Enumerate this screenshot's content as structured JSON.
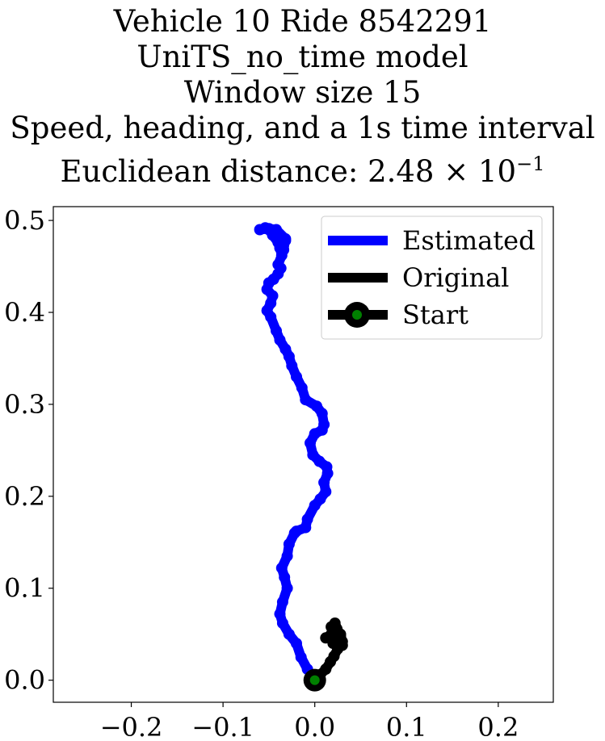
{
  "title": {
    "line1": "Vehicle 10 Ride 8542291",
    "line2": "UniTS_no_time model",
    "line3": "Window size 15",
    "line4": "Speed, heading, and a 1s time interval",
    "line5_prefix": "Euclidean distance: 2.48",
    "line5_times": "×",
    "line5_base": "10",
    "line5_exp": "−1"
  },
  "chart_data": {
    "type": "line",
    "xlim": [
      -0.285,
      0.26
    ],
    "ylim": [
      -0.024,
      0.515
    ],
    "xticks": [
      -0.2,
      -0.1,
      0.0,
      0.1,
      0.2
    ],
    "xtick_labels": [
      "−0.2",
      "−0.1",
      "0.0",
      "0.1",
      "0.2"
    ],
    "yticks": [
      0.0,
      0.1,
      0.2,
      0.3,
      0.4,
      0.5
    ],
    "ytick_labels": [
      "0.0",
      "0.1",
      "0.2",
      "0.3",
      "0.4",
      "0.5"
    ],
    "grid": false,
    "legend_position": "top-right",
    "colors": {
      "estimated": "#0000ff",
      "original": "#000000",
      "start_marker_fill": "#008000",
      "start_marker_edge": "#000000"
    },
    "series": [
      {
        "name": "Estimated",
        "color": "#0000ff",
        "x": [
          0.0,
          -0.008,
          -0.015,
          -0.02,
          -0.028,
          -0.035,
          -0.038,
          -0.035,
          -0.03,
          -0.033,
          -0.036,
          -0.03,
          -0.028,
          -0.022,
          -0.02,
          -0.01,
          -0.008,
          0.0,
          0.006,
          0.012,
          0.01,
          0.014,
          0.013,
          0.005,
          -0.002,
          -0.005,
          0.0,
          0.008,
          0.01,
          0.008,
          0.002,
          -0.01,
          -0.014,
          -0.02,
          -0.025,
          -0.028,
          -0.032,
          -0.038,
          -0.042,
          -0.048,
          -0.052,
          -0.048,
          -0.046,
          -0.052,
          -0.05,
          -0.045,
          -0.04,
          -0.037,
          -0.04,
          -0.036,
          -0.038,
          -0.04,
          -0.046,
          -0.05,
          -0.054,
          -0.048,
          -0.04,
          -0.032,
          -0.036,
          -0.034,
          -0.032,
          -0.042,
          -0.05,
          -0.06
        ],
        "y": [
          0.0,
          0.012,
          0.025,
          0.04,
          0.05,
          0.062,
          0.072,
          0.085,
          0.1,
          0.112,
          0.122,
          0.135,
          0.148,
          0.16,
          0.162,
          0.166,
          0.175,
          0.19,
          0.197,
          0.205,
          0.215,
          0.225,
          0.232,
          0.238,
          0.245,
          0.258,
          0.268,
          0.272,
          0.278,
          0.29,
          0.298,
          0.305,
          0.318,
          0.33,
          0.342,
          0.352,
          0.36,
          0.37,
          0.38,
          0.395,
          0.402,
          0.41,
          0.418,
          0.425,
          0.432,
          0.436,
          0.442,
          0.448,
          0.452,
          0.462,
          0.47,
          0.476,
          0.484,
          0.49,
          0.492,
          0.49,
          0.486,
          0.478,
          0.472,
          0.468,
          0.48,
          0.49,
          0.491,
          0.49
        ]
      },
      {
        "name": "Original",
        "color": "#000000",
        "x": [
          0.0,
          0.006,
          0.012,
          0.017,
          0.021,
          0.025,
          0.022,
          0.018,
          0.012,
          0.018,
          0.024,
          0.03,
          0.026,
          0.02,
          0.024,
          0.028,
          0.03,
          0.025,
          0.02,
          0.024,
          0.022,
          0.018,
          0.022,
          0.028
        ],
        "y": [
          0.0,
          0.006,
          0.012,
          0.02,
          0.026,
          0.034,
          0.04,
          0.045,
          0.046,
          0.05,
          0.044,
          0.038,
          0.046,
          0.052,
          0.056,
          0.05,
          0.042,
          0.036,
          0.04,
          0.046,
          0.052,
          0.058,
          0.062,
          0.048
        ]
      },
      {
        "name": "Start",
        "marker": "circle",
        "x": [
          0.0
        ],
        "y": [
          0.0
        ]
      }
    ]
  }
}
